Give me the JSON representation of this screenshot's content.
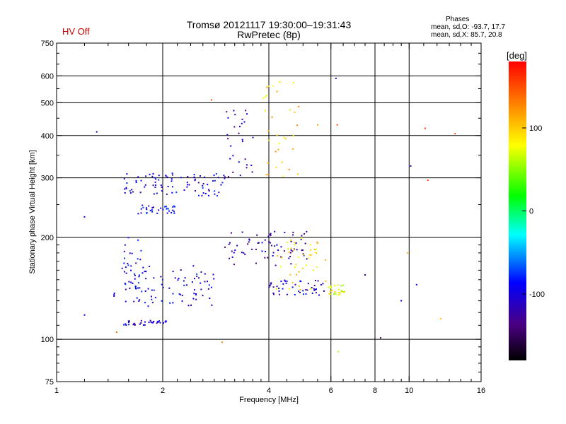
{
  "header": {
    "title_line1": "Tromsø 20121117 19:30:00–19:31:43",
    "title_line2": "RwPretec (8p)",
    "status": "HV Off",
    "phases": {
      "title": "Phases",
      "line_o": "mean, sd,O: -93.7, 17.7",
      "line_x": "mean, sd,X: 85.7, 20.8"
    }
  },
  "colors": {
    "status": "#cc0000",
    "grid": "#000000"
  },
  "chart_data": {
    "type": "scatter",
    "xlabel": "Frequency [MHz]",
    "ylabel": "Stationary phase Virtual Height [km]",
    "x_scale": "log",
    "y_scale": "log",
    "xlim": [
      1,
      16
    ],
    "ylim": [
      75,
      750
    ],
    "x_ticks": [
      1,
      2,
      4,
      6,
      8,
      10,
      16
    ],
    "x_minor_ticks": [
      1.2,
      1.4,
      1.6,
      1.8,
      2.2,
      2.4,
      2.6,
      2.8,
      3,
      3.2,
      3.4,
      3.6,
      3.8,
      4.5,
      5,
      5.5,
      6.5,
      7,
      7.5,
      8.5,
      9,
      9.5,
      11,
      12,
      13,
      14,
      15
    ],
    "x_grid": [
      2,
      4,
      6,
      8,
      10
    ],
    "y_ticks": [
      75,
      100,
      200,
      300,
      400,
      500,
      600,
      750
    ],
    "y_minor_ticks": [
      80,
      85,
      90,
      95,
      110,
      120,
      130,
      140,
      150,
      160,
      170,
      180,
      190,
      250,
      350,
      450,
      550,
      650,
      700
    ],
    "y_grid": [
      100,
      200,
      300,
      400,
      500,
      600
    ],
    "grid": true,
    "colorbar": {
      "label": "[deg]",
      "range": [
        -180,
        180
      ],
      "ticks": [
        100,
        0,
        -100
      ]
    },
    "clusters": [
      {
        "name": "lower O trace",
        "x": [
          1.45,
          2.8
        ],
        "y": [
          125,
          165
        ],
        "phase": -100
      },
      {
        "name": "lower O trace bottom",
        "x": [
          1.55,
          2.05
        ],
        "y": [
          110,
          114
        ],
        "phase": -110
      },
      {
        "name": "upper O trace",
        "x": [
          1.55,
          3.0
        ],
        "y": [
          265,
          310
        ],
        "phase": -100
      },
      {
        "name": "upper O trace low",
        "x": [
          1.7,
          2.2
        ],
        "y": [
          235,
          250
        ],
        "phase": -95
      },
      {
        "name": "O cusp",
        "x": [
          3.0,
          3.65
        ],
        "y": [
          300,
          500
        ],
        "phase": -110
      },
      {
        "name": "O vertical column",
        "x": [
          1.55,
          1.75
        ],
        "y": [
          130,
          200
        ],
        "phase": -100
      },
      {
        "name": "mid O band",
        "x": [
          3.0,
          5.2
        ],
        "y": [
          165,
          210
        ],
        "phase": -120
      },
      {
        "name": "mid O lower",
        "x": [
          4.0,
          5.8
        ],
        "y": [
          135,
          150
        ],
        "phase": -105
      },
      {
        "name": "X trace upper",
        "x": [
          3.8,
          4.9
        ],
        "y": [
          300,
          580
        ],
        "phase": 100
      },
      {
        "name": "X trace mid",
        "x": [
          4.2,
          5.8
        ],
        "y": [
          140,
          200
        ],
        "phase": 90
      },
      {
        "name": "X trace tail",
        "x": [
          5.9,
          6.6
        ],
        "y": [
          135,
          145
        ],
        "phase": 80
      }
    ],
    "isolated_points": [
      {
        "x": 1.3,
        "y": 410,
        "phase": -120
      },
      {
        "x": 1.2,
        "y": 230,
        "phase": -100
      },
      {
        "x": 1.2,
        "y": 118,
        "phase": -100
      },
      {
        "x": 1.48,
        "y": 105,
        "phase": 140
      },
      {
        "x": 2.75,
        "y": 510,
        "phase": 150
      },
      {
        "x": 2.95,
        "y": 98,
        "phase": 130
      },
      {
        "x": 6.2,
        "y": 590,
        "phase": -110
      },
      {
        "x": 6.25,
        "y": 430,
        "phase": 150
      },
      {
        "x": 6.3,
        "y": 92,
        "phase": 60
      },
      {
        "x": 7.5,
        "y": 155,
        "phase": -110
      },
      {
        "x": 8.3,
        "y": 101,
        "phase": -150
      },
      {
        "x": 9.5,
        "y": 130,
        "phase": -100
      },
      {
        "x": 10.1,
        "y": 325,
        "phase": -110
      },
      {
        "x": 10.5,
        "y": 145,
        "phase": -100
      },
      {
        "x": 11.1,
        "y": 420,
        "phase": 160
      },
      {
        "x": 11.3,
        "y": 295,
        "phase": 160
      },
      {
        "x": 12.3,
        "y": 115,
        "phase": 110
      },
      {
        "x": 13.5,
        "y": 405,
        "phase": 150
      },
      {
        "x": 9.9,
        "y": 180,
        "phase": 110
      },
      {
        "x": 5.5,
        "y": 430,
        "phase": 120
      }
    ]
  }
}
